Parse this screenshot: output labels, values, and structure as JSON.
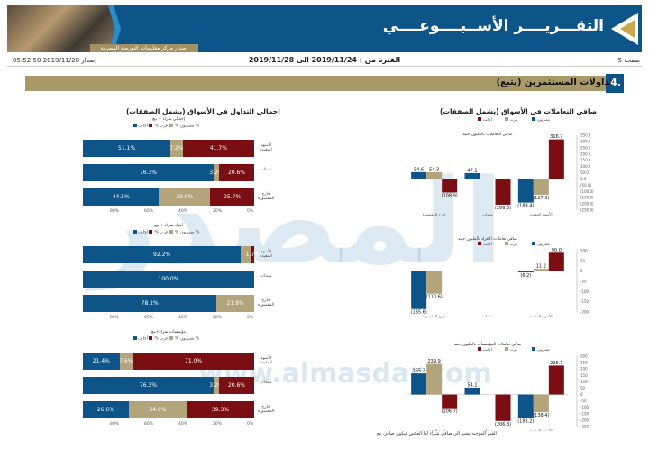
{
  "header": {
    "title": "التقـــريــــر الأســبــــوعــــي",
    "subbar": "إصدار مركز معلومات البورصة المصرية"
  },
  "meta": {
    "page": "صفحة 5",
    "period": "الفترة من : 2019/11/24 الى 2019/11/28",
    "issued": "إصدار 2019/11/28 05:52:50"
  },
  "section": {
    "number": "4.",
    "title": "تداولات المستثمرين (يتبع)"
  },
  "watermark": {
    "logo": "المصدر",
    "url": "www.almasdar.com"
  },
  "left_column": {
    "title": "إجمالي التداول في الأسواق (يشمل الصفقات)",
    "legend": [
      "مصريون %",
      "عرب %",
      "أجانب %"
    ],
    "axis": [
      "80%",
      "60%",
      "40%",
      "20%",
      "0%"
    ],
    "groups": [
      {
        "subtitle": "إجمالي شراء + بيع",
        "rows": [
          {
            "label": "الأسهم المقيدة",
            "values": [
              "51.1%",
              "7.2%",
              "41.7%"
            ],
            "fr": [
              0.511,
              0.072,
              0.417
            ]
          },
          {
            "label": "سندات",
            "values": [
              "76.3%",
              "3.2%",
              "20.6%"
            ],
            "fr": [
              0.763,
              0.032,
              0.206
            ]
          },
          {
            "label": "خارج المقصورة",
            "values": [
              "44.5%",
              "29.9%",
              "25.7%"
            ],
            "fr": [
              0.445,
              0.299,
              0.257
            ]
          }
        ]
      },
      {
        "subtitle": "أفراد شراء + بيع",
        "rows": [
          {
            "label": "الأسهم المقيدة",
            "values": [
              "92.2%",
              "",
              "1.7%"
            ],
            "fr": [
              0.922,
              0.061,
              0.017
            ]
          },
          {
            "label": "سندات",
            "values": [
              "100.0%",
              "",
              ""
            ],
            "fr": [
              1.0,
              0,
              0
            ]
          },
          {
            "label": "خارج المقصورة",
            "values": [
              "78.1%",
              "21.9%",
              ""
            ],
            "fr": [
              0.781,
              0.219,
              0
            ]
          }
        ]
      },
      {
        "subtitle": "مؤسسات شراء+بيع",
        "rows": [
          {
            "label": "الأسهم المقيدة",
            "values": [
              "21.4%",
              "7.6%",
              "71.0%"
            ],
            "fr": [
              0.214,
              0.076,
              0.71
            ]
          },
          {
            "label": "سندات",
            "values": [
              "76.3%",
              "3.2%",
              "20.6%"
            ],
            "fr": [
              0.763,
              0.032,
              0.206
            ]
          },
          {
            "label": "خارج المقصورة",
            "values": [
              "26.6%",
              "34.0%",
              "39.3%"
            ],
            "fr": [
              0.266,
              0.34,
              0.393
            ]
          }
        ]
      }
    ]
  },
  "right_column": {
    "title": "صافي التعاملات في الأسواق (يشمل الصفقات)",
    "footnote": "القيم الموجبة تشير الى صافي شراء اما العكس فيكون صافي بيع"
  },
  "chart_data": [
    {
      "type": "bar",
      "title": "صافي التعاملات بالمليون جنيه",
      "categories": [
        "الأسهم المقيدة",
        "سندات",
        "خارج المقصورة"
      ],
      "series": [
        {
          "name": "مصريون",
          "values": [
            -189.4,
            47.1,
            54.6
          ]
        },
        {
          "name": "عرب",
          "values": [
            -127.3,
            0,
            54.3
          ]
        },
        {
          "name": "أجانب",
          "values": [
            316.7,
            -206.3,
            -108.9
          ]
        }
      ],
      "ylim": [
        -250,
        350
      ],
      "ticks": [
        "350.0",
        "300.0",
        "250.0",
        "200.0",
        "150.0",
        "100.0",
        "50.0",
        "0.0",
        "(50.0)",
        "(100.0)",
        "(150.0)",
        "(200.0)",
        "(250.0)"
      ]
    },
    {
      "type": "bar",
      "title": "صافي تعاملات الأفراد بالمليون جنيه",
      "categories": [
        "الأسهم المقيدة",
        "سندات",
        "خارج المقصورة"
      ],
      "series": [
        {
          "name": "مصريون",
          "values": [
            -6.2,
            0,
            -185.6
          ]
        },
        {
          "name": "عرب",
          "values": [
            11.2,
            0,
            -110.6
          ]
        },
        {
          "name": "أجانب",
          "values": [
            90.0,
            0,
            0
          ]
        }
      ],
      "ylim": [
        -200,
        100
      ],
      "ticks": [
        "100",
        "50",
        "0",
        "-50",
        "-100",
        "-150",
        "-200"
      ]
    },
    {
      "type": "bar",
      "title": "صافي تعاملات المؤسسات بالمليون جنيه",
      "categories": [
        "الأسهم المقيدة",
        "سندات",
        "خارج المقصورة"
      ],
      "series": [
        {
          "name": "مصريون",
          "values": [
            -183.2,
            54.1,
            165.2
          ]
        },
        {
          "name": "عرب",
          "values": [
            -138.4,
            0,
            239.9
          ]
        },
        {
          "name": "أجانب",
          "values": [
            226.7,
            -206.3,
            -106.7
          ]
        }
      ],
      "ylim": [
        -250,
        300
      ],
      "ticks": [
        "300",
        "250",
        "200",
        "150",
        "100",
        "50",
        "0",
        "-50",
        "-100",
        "-150",
        "-200",
        "-250"
      ]
    }
  ],
  "colors": {
    "blue": "#0d5488",
    "tan": "#b4a47c",
    "red": "#7a0e13",
    "gold": "#a89968"
  }
}
